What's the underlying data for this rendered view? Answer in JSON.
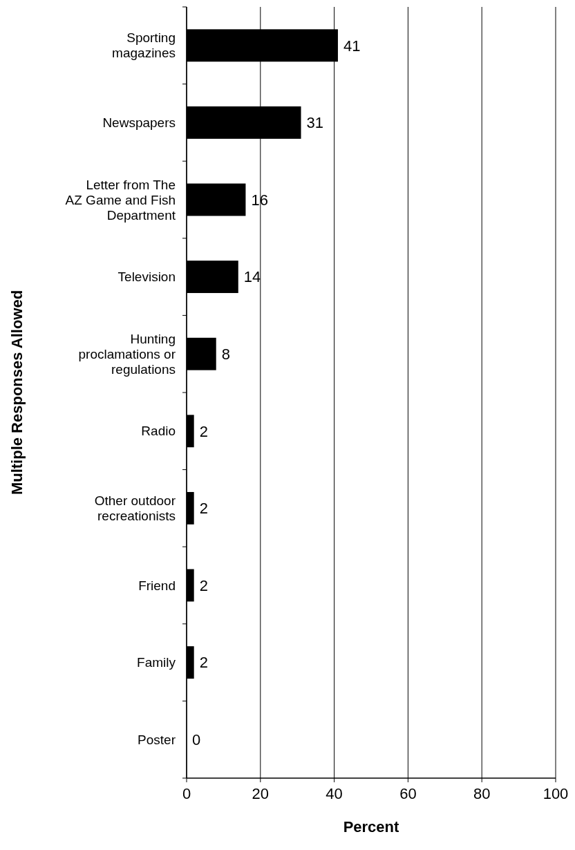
{
  "chart_data": {
    "type": "bar",
    "orientation": "horizontal",
    "categories": [
      "Sporting magazines",
      "Newspapers",
      "Letter from The AZ Game and Fish Department",
      "Television",
      "Hunting proclamations or regulations",
      "Radio",
      "Other outdoor recreationists",
      "Friend",
      "Family",
      "Poster"
    ],
    "values": [
      41,
      31,
      16,
      14,
      8,
      2,
      2,
      2,
      2,
      0
    ],
    "color": "#000000",
    "xlim": [
      0,
      100
    ],
    "xticks": [
      0,
      20,
      40,
      60,
      80,
      100
    ],
    "grid": "x",
    "data_labels": true,
    "xlabel": "Percent",
    "ylabel": "Multiple Responses Allowed"
  }
}
